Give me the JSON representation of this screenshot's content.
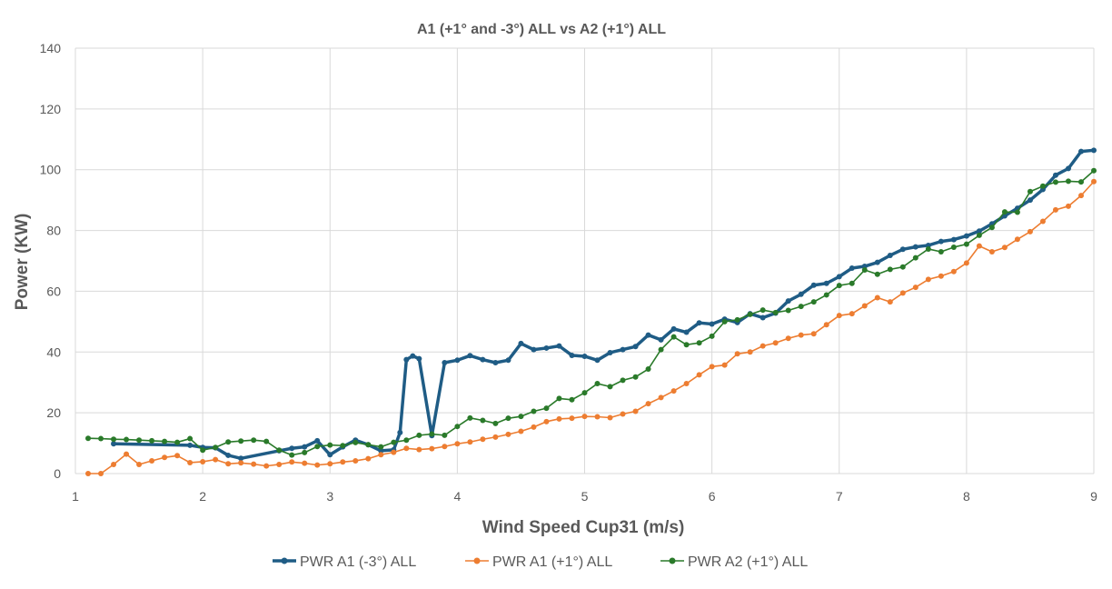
{
  "chart_data": {
    "type": "line",
    "title": "A1 (+1° and -3°) ALL  vs  A2 (+1°) ALL",
    "xlabel": "Wind Speed Cup31 (m/s)",
    "ylabel": "Power (KW)",
    "xlim": [
      1,
      9
    ],
    "ylim": [
      0,
      140
    ],
    "xticks": [
      "1",
      "2",
      "3",
      "4",
      "5",
      "6",
      "7",
      "8",
      "9"
    ],
    "yticks": [
      "0",
      "20",
      "40",
      "60",
      "80",
      "100",
      "120",
      "140"
    ],
    "grid": "vertical and horizontal",
    "legend_position": "bottom",
    "series": [
      {
        "name": "PWR A1 (-3°)  ALL",
        "color": "#1f5c85",
        "x": [
          1.3,
          1.9,
          2.0,
          2.1,
          2.2,
          2.3,
          2.6,
          2.7,
          2.8,
          2.9,
          3.0,
          3.1,
          3.2,
          3.3,
          3.4,
          3.5,
          3.55,
          3.6,
          3.65,
          3.7,
          3.8,
          3.9,
          4.0,
          4.1,
          4.2,
          4.3,
          4.4,
          4.5,
          4.6,
          4.7,
          4.8,
          4.9,
          5.0,
          5.1,
          5.2,
          5.3,
          5.4,
          5.5,
          5.6,
          5.7,
          5.8,
          5.9,
          6.0,
          6.1,
          6.2,
          6.3,
          6.4,
          6.5,
          6.6,
          6.7,
          6.8,
          6.9,
          7.0,
          7.1,
          7.2,
          7.3,
          7.4,
          7.5,
          7.6,
          7.7,
          7.8,
          7.9,
          8.0,
          8.1,
          8.2,
          8.3,
          8.4,
          8.5,
          8.6,
          8.7,
          8.8,
          8.9,
          9.0
        ],
        "y": [
          9.8,
          9.3,
          8.6,
          8.5,
          6.0,
          5.0,
          7.5,
          8.3,
          8.8,
          10.8,
          6.2,
          8.8,
          11.0,
          9.5,
          7.5,
          7.8,
          13.5,
          37.5,
          38.7,
          37.8,
          12.5,
          36.5,
          37.3,
          38.8,
          37.5,
          36.5,
          37.3,
          42.8,
          40.8,
          41.3,
          42.0,
          38.9,
          38.6,
          37.3,
          39.8,
          40.8,
          41.8,
          45.6,
          44.0,
          47.6,
          46.5,
          49.6,
          49.2,
          50.8,
          49.7,
          52.6,
          51.3,
          52.8,
          56.8,
          59.0,
          62.0,
          62.6,
          64.8,
          67.6,
          68.2,
          69.5,
          71.8,
          73.8,
          74.6,
          75.1,
          76.4,
          77.0,
          78.2,
          79.8,
          82.2,
          84.8,
          87.3,
          90.0,
          93.5,
          98.2,
          100.4,
          106.0,
          106.4
        ]
      },
      {
        "name": "PWR A1 (+1°) ALL",
        "color": "#ed7d31",
        "x": [
          1.1,
          1.2,
          1.3,
          1.4,
          1.5,
          1.6,
          1.7,
          1.8,
          1.9,
          2.0,
          2.1,
          2.2,
          2.3,
          2.4,
          2.5,
          2.6,
          2.7,
          2.8,
          2.9,
          3.0,
          3.1,
          3.2,
          3.3,
          3.4,
          3.5,
          3.6,
          3.7,
          3.8,
          3.9,
          4.0,
          4.1,
          4.2,
          4.3,
          4.4,
          4.5,
          4.6,
          4.7,
          4.8,
          4.9,
          5.0,
          5.1,
          5.2,
          5.3,
          5.4,
          5.5,
          5.6,
          5.7,
          5.8,
          5.9,
          6.0,
          6.1,
          6.2,
          6.3,
          6.4,
          6.5,
          6.6,
          6.7,
          6.8,
          6.9,
          7.0,
          7.1,
          7.2,
          7.3,
          7.4,
          7.5,
          7.6,
          7.7,
          7.8,
          7.9,
          8.0,
          8.1,
          8.2,
          8.3,
          8.4,
          8.5,
          8.6,
          8.7,
          8.8,
          8.9,
          9.0
        ],
        "y": [
          0,
          0,
          3.0,
          6.4,
          3.0,
          4.2,
          5.3,
          5.9,
          3.6,
          3.9,
          4.6,
          3.2,
          3.5,
          3.1,
          2.5,
          3.0,
          3.8,
          3.4,
          2.8,
          3.2,
          3.8,
          4.2,
          4.9,
          6.2,
          7.0,
          8.3,
          7.9,
          8.2,
          8.9,
          9.8,
          10.4,
          11.3,
          12.0,
          12.9,
          13.9,
          15.3,
          17.1,
          18.0,
          18.2,
          18.8,
          18.7,
          18.4,
          19.6,
          20.5,
          23.0,
          25.0,
          27.2,
          29.6,
          32.5,
          35.2,
          35.7,
          39.4,
          40.0,
          42.0,
          43.0,
          44.5,
          45.6,
          46.0,
          49.0,
          52.0,
          52.6,
          55.2,
          57.9,
          56.5,
          59.4,
          61.3,
          63.9,
          65.0,
          66.5,
          69.3,
          74.9,
          73.0,
          74.4,
          77.1,
          79.6,
          83.0,
          86.8,
          88.0,
          91.5,
          96.1
        ]
      },
      {
        "name": "PWR A2 (+1°)  ALL",
        "color": "#2a7a2a",
        "x": [
          1.1,
          1.2,
          1.3,
          1.4,
          1.5,
          1.6,
          1.7,
          1.8,
          1.9,
          2.0,
          2.1,
          2.2,
          2.3,
          2.4,
          2.5,
          2.6,
          2.7,
          2.8,
          2.9,
          3.0,
          3.1,
          3.2,
          3.3,
          3.4,
          3.5,
          3.6,
          3.7,
          3.8,
          3.9,
          4.0,
          4.1,
          4.2,
          4.3,
          4.4,
          4.5,
          4.6,
          4.7,
          4.8,
          4.9,
          5.0,
          5.1,
          5.2,
          5.3,
          5.4,
          5.5,
          5.6,
          5.7,
          5.8,
          5.9,
          6.0,
          6.1,
          6.2,
          6.3,
          6.4,
          6.5,
          6.6,
          6.7,
          6.8,
          6.9,
          7.0,
          7.1,
          7.2,
          7.3,
          7.4,
          7.5,
          7.6,
          7.7,
          7.8,
          7.9,
          8.0,
          8.1,
          8.2,
          8.3,
          8.4,
          8.5,
          8.6,
          8.7,
          8.8,
          8.9,
          9.0
        ],
        "y": [
          11.6,
          11.5,
          11.3,
          11.2,
          11.0,
          10.8,
          10.6,
          10.3,
          11.5,
          7.7,
          8.6,
          10.4,
          10.7,
          11.0,
          10.6,
          7.7,
          6.1,
          6.9,
          8.9,
          9.4,
          9.2,
          10.2,
          9.5,
          8.8,
          10.3,
          11.0,
          12.6,
          13.0,
          12.6,
          15.5,
          18.3,
          17.5,
          16.5,
          18.2,
          18.8,
          20.5,
          21.5,
          24.7,
          24.3,
          26.6,
          29.6,
          28.6,
          30.7,
          31.8,
          34.4,
          40.8,
          45.0,
          42.4,
          43.0,
          45.2,
          50.0,
          50.6,
          52.4,
          53.8,
          53.0,
          53.7,
          55.0,
          56.5,
          58.8,
          61.9,
          62.6,
          67.0,
          65.6,
          67.2,
          68.0,
          71.0,
          73.9,
          73.0,
          74.5,
          75.5,
          78.4,
          81.0,
          86.1,
          86.0,
          92.8,
          94.6,
          95.9,
          96.2,
          96.0,
          99.7
        ]
      }
    ]
  }
}
